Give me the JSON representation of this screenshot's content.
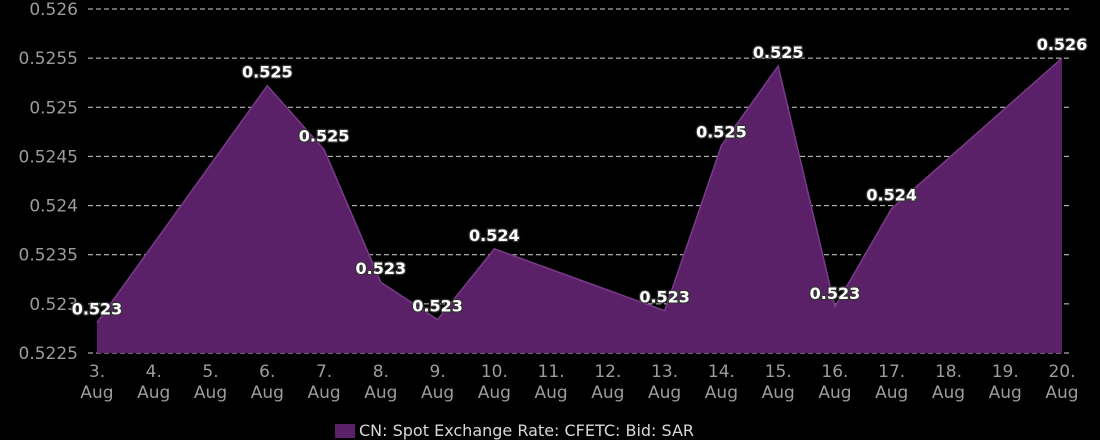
{
  "chart_data": {
    "type": "area",
    "categories": [
      "3. Aug",
      "4. Aug",
      "5. Aug",
      "6. Aug",
      "7. Aug",
      "8. Aug",
      "9. Aug",
      "10. Aug",
      "11. Aug",
      "12. Aug",
      "13. Aug",
      "14. Aug",
      "15. Aug",
      "16. Aug",
      "17. Aug",
      "18. Aug",
      "19. Aug",
      "20. Aug"
    ],
    "x_labels": [
      [
        "3.",
        "Aug"
      ],
      [
        "4.",
        "Aug"
      ],
      [
        "5.",
        "Aug"
      ],
      [
        "6.",
        "Aug"
      ],
      [
        "7.",
        "Aug"
      ],
      [
        "8.",
        "Aug"
      ],
      [
        "9.",
        "Aug"
      ],
      [
        "10.",
        "Aug"
      ],
      [
        "11.",
        "Aug"
      ],
      [
        "12.",
        "Aug"
      ],
      [
        "13.",
        "Aug"
      ],
      [
        "14.",
        "Aug"
      ],
      [
        "15.",
        "Aug"
      ],
      [
        "16.",
        "Aug"
      ],
      [
        "17.",
        "Aug"
      ],
      [
        "18.",
        "Aug"
      ],
      [
        "19.",
        "Aug"
      ],
      [
        "20.",
        "Aug"
      ]
    ],
    "series": [
      {
        "name": "CN: Spot Exchange Rate: CFETC: Bid: SAR",
        "color": "#5a2168",
        "line_color": "#7a3a8a",
        "points": [
          {
            "x": "3. Aug",
            "y": 0.52281,
            "label": "0.523"
          },
          {
            "x": "6. Aug",
            "y": 0.52522,
            "label": "0.525"
          },
          {
            "x": "7. Aug",
            "y": 0.52457,
            "label": "0.525"
          },
          {
            "x": "8. Aug",
            "y": 0.52322,
            "label": "0.523"
          },
          {
            "x": "9. Aug",
            "y": 0.52284,
            "label": "0.523"
          },
          {
            "x": "10. Aug",
            "y": 0.52356,
            "label": "0.524"
          },
          {
            "x": "13. Aug",
            "y": 0.52293,
            "label": "0.523"
          },
          {
            "x": "14. Aug",
            "y": 0.52461,
            "label": "0.525"
          },
          {
            "x": "15. Aug",
            "y": 0.52542,
            "label": "0.525"
          },
          {
            "x": "16. Aug",
            "y": 0.52297,
            "label": "0.523"
          },
          {
            "x": "17. Aug",
            "y": 0.52397,
            "label": "0.524"
          },
          {
            "x": "20. Aug",
            "y": 0.5255,
            "label": "0.526"
          }
        ]
      }
    ],
    "yticks": [
      0.5225,
      0.523,
      0.5235,
      0.524,
      0.5245,
      0.525,
      0.5255,
      0.526
    ],
    "ytick_labels": [
      "0.5225",
      "0.523",
      "0.5235",
      "0.524",
      "0.5245",
      "0.525",
      "0.5255",
      "0.526"
    ],
    "ylim": [
      0.5225,
      0.526
    ],
    "grid": true,
    "grid_style": "dashed",
    "legend_position": "bottom-center",
    "title": "",
    "xlabel": "",
    "ylabel": "",
    "colors": {
      "background": "#000000",
      "grid": "#d0d0d0",
      "tick_text": "#9c9c9c"
    }
  }
}
